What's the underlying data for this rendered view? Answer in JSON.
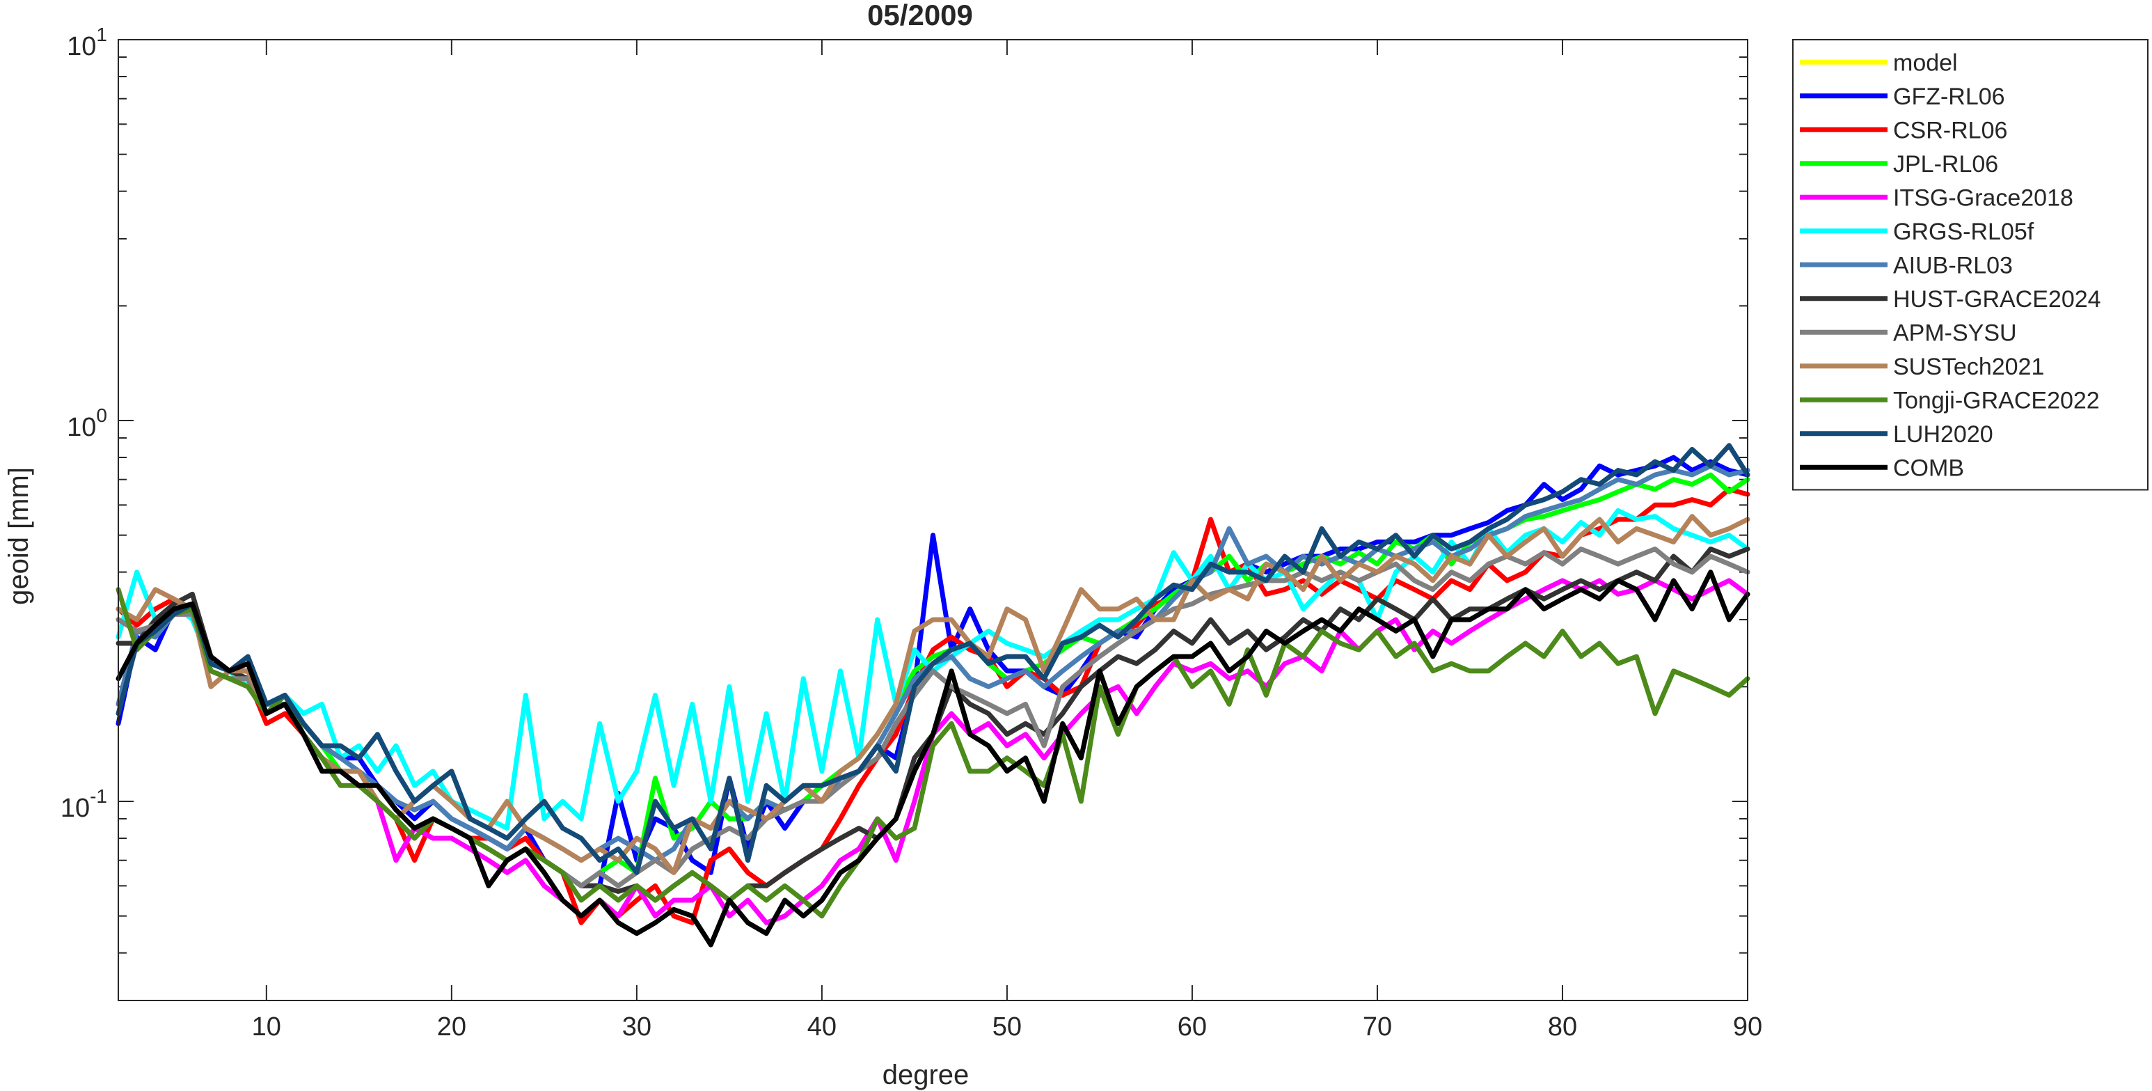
{
  "chart_data": {
    "type": "line",
    "title": "05/2009",
    "xlabel": "degree",
    "ylabel": "geoid [mm]",
    "xlim": [
      2,
      90
    ],
    "ylim": [
      0.03,
      10
    ],
    "yscale": "log",
    "xticks": [
      10,
      20,
      30,
      40,
      50,
      60,
      70,
      80,
      90
    ],
    "yticks": [
      {
        "value": 0.1,
        "base": "10",
        "exp": "-1"
      },
      {
        "value": 1,
        "base": "10",
        "exp": "0"
      },
      {
        "value": 10,
        "base": "10",
        "exp": "1"
      }
    ],
    "grid": false,
    "legend_position": "outside-right-top",
    "x_start": 2,
    "series": [
      {
        "name": "model",
        "color": "#ffff00",
        "values": []
      },
      {
        "name": "GFZ-RL06",
        "color": "#0000ff",
        "values": [
          0.16,
          0.27,
          0.25,
          0.32,
          0.33,
          0.23,
          0.22,
          0.22,
          0.18,
          0.19,
          0.16,
          0.14,
          0.13,
          0.13,
          0.11,
          0.1,
          0.09,
          0.1,
          0.09,
          0.085,
          0.08,
          0.075,
          0.085,
          0.07,
          0.065,
          0.06,
          0.06,
          0.105,
          0.07,
          0.09,
          0.085,
          0.07,
          0.065,
          0.115,
          0.075,
          0.1,
          0.085,
          0.1,
          0.11,
          0.115,
          0.12,
          0.14,
          0.13,
          0.2,
          0.5,
          0.25,
          0.32,
          0.25,
          0.22,
          0.22,
          0.2,
          0.19,
          0.22,
          0.26,
          0.28,
          0.27,
          0.32,
          0.36,
          0.38,
          0.42,
          0.4,
          0.42,
          0.4,
          0.42,
          0.44,
          0.44,
          0.46,
          0.46,
          0.48,
          0.48,
          0.48,
          0.5,
          0.5,
          0.52,
          0.54,
          0.58,
          0.6,
          0.68,
          0.62,
          0.66,
          0.76,
          0.72,
          0.74,
          0.76,
          0.8,
          0.74,
          0.78,
          0.74,
          0.72
        ]
      },
      {
        "name": "CSR-RL06",
        "color": "#ff0000",
        "values": [
          0.32,
          0.29,
          0.32,
          0.34,
          0.31,
          0.24,
          0.22,
          0.21,
          0.16,
          0.17,
          0.15,
          0.13,
          0.12,
          0.12,
          0.1,
          0.09,
          0.07,
          0.09,
          0.085,
          0.08,
          0.08,
          0.075,
          0.08,
          0.07,
          0.065,
          0.048,
          0.055,
          0.05,
          0.055,
          0.06,
          0.05,
          0.048,
          0.07,
          0.075,
          0.065,
          0.06,
          0.065,
          0.07,
          0.075,
          0.09,
          0.11,
          0.13,
          0.15,
          0.2,
          0.25,
          0.27,
          0.25,
          0.24,
          0.2,
          0.22,
          0.21,
          0.19,
          0.2,
          0.26,
          0.28,
          0.29,
          0.33,
          0.34,
          0.38,
          0.55,
          0.4,
          0.42,
          0.35,
          0.36,
          0.38,
          0.35,
          0.38,
          0.36,
          0.34,
          0.38,
          0.36,
          0.34,
          0.38,
          0.36,
          0.42,
          0.38,
          0.4,
          0.45,
          0.44,
          0.5,
          0.52,
          0.55,
          0.55,
          0.6,
          0.6,
          0.62,
          0.6,
          0.66,
          0.64
        ]
      },
      {
        "name": "JPL-RL06",
        "color": "#00ff00",
        "values": [
          0.3,
          0.28,
          0.28,
          0.31,
          0.32,
          0.22,
          0.21,
          0.2,
          0.18,
          0.19,
          0.16,
          0.14,
          0.12,
          0.12,
          0.1,
          0.09,
          0.08,
          0.09,
          0.085,
          0.08,
          0.075,
          0.07,
          0.075,
          0.07,
          0.065,
          0.06,
          0.065,
          0.07,
          0.065,
          0.115,
          0.08,
          0.085,
          0.1,
          0.09,
          0.09,
          0.1,
          0.095,
          0.1,
          0.11,
          0.12,
          0.13,
          0.15,
          0.18,
          0.22,
          0.24,
          0.25,
          0.26,
          0.23,
          0.21,
          0.22,
          0.23,
          0.25,
          0.27,
          0.26,
          0.28,
          0.3,
          0.32,
          0.35,
          0.38,
          0.4,
          0.44,
          0.38,
          0.42,
          0.4,
          0.42,
          0.44,
          0.42,
          0.45,
          0.42,
          0.48,
          0.46,
          0.5,
          0.42,
          0.48,
          0.5,
          0.52,
          0.55,
          0.56,
          0.58,
          0.6,
          0.62,
          0.65,
          0.68,
          0.66,
          0.7,
          0.68,
          0.72,
          0.65,
          0.7
        ]
      },
      {
        "name": "ITSG-Grace2018",
        "color": "#ff00ff",
        "values": [
          0.3,
          0.28,
          0.28,
          0.31,
          0.31,
          0.22,
          0.21,
          0.2,
          0.17,
          0.18,
          0.15,
          0.13,
          0.12,
          0.11,
          0.1,
          0.07,
          0.085,
          0.08,
          0.08,
          0.075,
          0.07,
          0.065,
          0.07,
          0.06,
          0.055,
          0.05,
          0.055,
          0.05,
          0.06,
          0.05,
          0.055,
          0.055,
          0.06,
          0.05,
          0.055,
          0.048,
          0.05,
          0.055,
          0.06,
          0.07,
          0.075,
          0.09,
          0.07,
          0.1,
          0.15,
          0.17,
          0.15,
          0.16,
          0.14,
          0.15,
          0.13,
          0.15,
          0.17,
          0.19,
          0.2,
          0.17,
          0.2,
          0.23,
          0.22,
          0.23,
          0.21,
          0.22,
          0.2,
          0.23,
          0.24,
          0.22,
          0.28,
          0.25,
          0.28,
          0.3,
          0.25,
          0.28,
          0.26,
          0.28,
          0.3,
          0.32,
          0.34,
          0.36,
          0.38,
          0.36,
          0.38,
          0.35,
          0.36,
          0.38,
          0.36,
          0.34,
          0.36,
          0.38,
          0.35
        ]
      },
      {
        "name": "GRGS-RL05f",
        "color": "#00ffff",
        "values": [
          0.27,
          0.4,
          0.3,
          0.33,
          0.3,
          0.23,
          0.22,
          0.2,
          0.18,
          0.19,
          0.17,
          0.18,
          0.13,
          0.14,
          0.12,
          0.14,
          0.11,
          0.12,
          0.1,
          0.095,
          0.09,
          0.085,
          0.19,
          0.09,
          0.1,
          0.09,
          0.16,
          0.1,
          0.12,
          0.19,
          0.11,
          0.18,
          0.1,
          0.2,
          0.1,
          0.17,
          0.1,
          0.21,
          0.12,
          0.22,
          0.13,
          0.3,
          0.18,
          0.25,
          0.22,
          0.24,
          0.26,
          0.28,
          0.26,
          0.25,
          0.24,
          0.26,
          0.28,
          0.3,
          0.3,
          0.32,
          0.34,
          0.45,
          0.38,
          0.44,
          0.36,
          0.42,
          0.38,
          0.4,
          0.32,
          0.36,
          0.4,
          0.38,
          0.3,
          0.4,
          0.44,
          0.4,
          0.48,
          0.42,
          0.52,
          0.45,
          0.5,
          0.52,
          0.48,
          0.54,
          0.5,
          0.58,
          0.55,
          0.56,
          0.52,
          0.5,
          0.48,
          0.5,
          0.46
        ]
      },
      {
        "name": "AIUB-RL03",
        "color": "#4a7fb5",
        "values": [
          0.18,
          0.28,
          0.27,
          0.31,
          0.32,
          0.23,
          0.22,
          0.21,
          0.18,
          0.18,
          0.16,
          0.14,
          0.13,
          0.12,
          0.11,
          0.1,
          0.095,
          0.1,
          0.09,
          0.085,
          0.08,
          0.075,
          0.085,
          0.08,
          0.075,
          0.07,
          0.075,
          0.08,
          0.075,
          0.07,
          0.075,
          0.09,
          0.085,
          0.1,
          0.09,
          0.1,
          0.095,
          0.1,
          0.1,
          0.115,
          0.12,
          0.14,
          0.17,
          0.21,
          0.23,
          0.24,
          0.21,
          0.2,
          0.21,
          0.22,
          0.2,
          0.22,
          0.24,
          0.26,
          0.28,
          0.28,
          0.3,
          0.34,
          0.38,
          0.4,
          0.52,
          0.42,
          0.44,
          0.4,
          0.44,
          0.42,
          0.44,
          0.42,
          0.46,
          0.44,
          0.46,
          0.48,
          0.44,
          0.46,
          0.5,
          0.52,
          0.56,
          0.58,
          0.6,
          0.62,
          0.66,
          0.7,
          0.68,
          0.72,
          0.74,
          0.72,
          0.76,
          0.72,
          0.74
        ]
      },
      {
        "name": "HUST-GRACE2024",
        "color": "#333333",
        "values": [
          0.26,
          0.26,
          0.3,
          0.33,
          0.35,
          0.24,
          0.22,
          0.21,
          0.17,
          0.18,
          0.15,
          0.13,
          0.12,
          0.12,
          0.1,
          0.09,
          0.08,
          0.09,
          0.085,
          0.08,
          0.075,
          0.07,
          0.075,
          0.07,
          0.065,
          0.06,
          0.06,
          0.058,
          0.06,
          0.055,
          0.06,
          0.065,
          0.06,
          0.055,
          0.06,
          0.06,
          0.065,
          0.07,
          0.075,
          0.08,
          0.085,
          0.08,
          0.09,
          0.13,
          0.15,
          0.2,
          0.18,
          0.17,
          0.15,
          0.16,
          0.15,
          0.17,
          0.2,
          0.22,
          0.24,
          0.23,
          0.25,
          0.28,
          0.26,
          0.3,
          0.26,
          0.28,
          0.25,
          0.27,
          0.3,
          0.28,
          0.32,
          0.3,
          0.34,
          0.32,
          0.3,
          0.34,
          0.3,
          0.32,
          0.32,
          0.34,
          0.36,
          0.34,
          0.36,
          0.38,
          0.36,
          0.38,
          0.4,
          0.38,
          0.44,
          0.4,
          0.46,
          0.44,
          0.46
        ]
      },
      {
        "name": "APM-SYSU",
        "color": "#808080",
        "values": [
          0.3,
          0.28,
          0.29,
          0.31,
          0.31,
          0.22,
          0.21,
          0.21,
          0.17,
          0.18,
          0.15,
          0.13,
          0.12,
          0.12,
          0.1,
          0.09,
          0.08,
          0.09,
          0.085,
          0.08,
          0.075,
          0.07,
          0.075,
          0.07,
          0.065,
          0.06,
          0.065,
          0.06,
          0.065,
          0.07,
          0.065,
          0.075,
          0.08,
          0.085,
          0.08,
          0.09,
          0.095,
          0.1,
          0.1,
          0.11,
          0.12,
          0.13,
          0.16,
          0.19,
          0.22,
          0.2,
          0.19,
          0.18,
          0.17,
          0.18,
          0.14,
          0.2,
          0.22,
          0.24,
          0.26,
          0.28,
          0.3,
          0.32,
          0.33,
          0.35,
          0.36,
          0.37,
          0.38,
          0.38,
          0.4,
          0.38,
          0.4,
          0.38,
          0.4,
          0.42,
          0.38,
          0.36,
          0.4,
          0.38,
          0.42,
          0.44,
          0.42,
          0.45,
          0.42,
          0.46,
          0.44,
          0.42,
          0.44,
          0.46,
          0.42,
          0.4,
          0.44,
          0.42,
          0.4
        ]
      },
      {
        "name": "SUSTech2021",
        "color": "#b5835a",
        "values": [
          0.32,
          0.3,
          0.36,
          0.34,
          0.32,
          0.2,
          0.22,
          0.22,
          0.17,
          0.18,
          0.15,
          0.13,
          0.12,
          0.12,
          0.1,
          0.09,
          0.1,
          0.11,
          0.1,
          0.09,
          0.085,
          0.1,
          0.085,
          0.08,
          0.075,
          0.07,
          0.075,
          0.07,
          0.08,
          0.075,
          0.065,
          0.09,
          0.085,
          0.1,
          0.095,
          0.09,
          0.1,
          0.11,
          0.1,
          0.12,
          0.13,
          0.15,
          0.18,
          0.28,
          0.3,
          0.3,
          0.26,
          0.24,
          0.32,
          0.3,
          0.22,
          0.28,
          0.36,
          0.32,
          0.32,
          0.34,
          0.3,
          0.3,
          0.38,
          0.34,
          0.36,
          0.34,
          0.42,
          0.4,
          0.36,
          0.44,
          0.38,
          0.42,
          0.4,
          0.44,
          0.42,
          0.38,
          0.44,
          0.42,
          0.5,
          0.44,
          0.48,
          0.52,
          0.44,
          0.5,
          0.55,
          0.48,
          0.52,
          0.5,
          0.48,
          0.56,
          0.5,
          0.52,
          0.55
        ]
      },
      {
        "name": "Tongji-GRACE2022",
        "color": "#4c8a1a",
        "values": [
          0.36,
          0.25,
          0.28,
          0.31,
          0.32,
          0.22,
          0.21,
          0.2,
          0.17,
          0.19,
          0.15,
          0.13,
          0.11,
          0.11,
          0.1,
          0.09,
          0.08,
          0.09,
          0.085,
          0.08,
          0.075,
          0.07,
          0.075,
          0.07,
          0.065,
          0.055,
          0.06,
          0.055,
          0.06,
          0.055,
          0.06,
          0.065,
          0.06,
          0.055,
          0.06,
          0.055,
          0.06,
          0.055,
          0.05,
          0.06,
          0.07,
          0.09,
          0.08,
          0.085,
          0.14,
          0.16,
          0.12,
          0.12,
          0.13,
          0.12,
          0.11,
          0.15,
          0.1,
          0.2,
          0.15,
          0.2,
          0.22,
          0.24,
          0.2,
          0.22,
          0.18,
          0.25,
          0.19,
          0.26,
          0.24,
          0.28,
          0.26,
          0.25,
          0.28,
          0.24,
          0.26,
          0.22,
          0.23,
          0.22,
          0.22,
          0.24,
          0.26,
          0.24,
          0.28,
          0.24,
          0.26,
          0.23,
          0.24,
          0.17,
          0.22,
          0.21,
          0.2,
          0.19,
          0.21
        ]
      },
      {
        "name": "LUH2020",
        "color": "#134a77",
        "values": [
          0.17,
          0.26,
          0.28,
          0.31,
          0.33,
          0.23,
          0.22,
          0.24,
          0.18,
          0.19,
          0.16,
          0.14,
          0.14,
          0.13,
          0.15,
          0.12,
          0.1,
          0.11,
          0.12,
          0.09,
          0.085,
          0.08,
          0.09,
          0.1,
          0.085,
          0.08,
          0.07,
          0.075,
          0.065,
          0.1,
          0.085,
          0.09,
          0.075,
          0.115,
          0.07,
          0.11,
          0.1,
          0.11,
          0.11,
          0.115,
          0.12,
          0.14,
          0.12,
          0.2,
          0.23,
          0.25,
          0.26,
          0.23,
          0.24,
          0.24,
          0.21,
          0.26,
          0.27,
          0.29,
          0.27,
          0.3,
          0.34,
          0.37,
          0.36,
          0.42,
          0.4,
          0.4,
          0.38,
          0.44,
          0.4,
          0.52,
          0.44,
          0.48,
          0.46,
          0.5,
          0.44,
          0.5,
          0.46,
          0.48,
          0.52,
          0.55,
          0.6,
          0.62,
          0.65,
          0.7,
          0.68,
          0.74,
          0.72,
          0.78,
          0.74,
          0.84,
          0.76,
          0.86,
          0.72
        ]
      },
      {
        "name": "COMB",
        "color": "#000000",
        "values": [
          0.21,
          0.26,
          0.29,
          0.32,
          0.33,
          0.24,
          0.22,
          0.23,
          0.17,
          0.18,
          0.15,
          0.12,
          0.12,
          0.11,
          0.11,
          0.095,
          0.085,
          0.09,
          0.085,
          0.08,
          0.06,
          0.07,
          0.075,
          0.065,
          0.055,
          0.05,
          0.055,
          0.048,
          0.045,
          0.048,
          0.052,
          0.05,
          0.042,
          0.055,
          0.048,
          0.045,
          0.055,
          0.05,
          0.055,
          0.065,
          0.07,
          0.08,
          0.09,
          0.12,
          0.15,
          0.22,
          0.15,
          0.14,
          0.12,
          0.13,
          0.1,
          0.16,
          0.13,
          0.22,
          0.16,
          0.2,
          0.22,
          0.24,
          0.24,
          0.26,
          0.22,
          0.24,
          0.28,
          0.26,
          0.28,
          0.3,
          0.28,
          0.32,
          0.3,
          0.28,
          0.3,
          0.24,
          0.3,
          0.3,
          0.32,
          0.32,
          0.36,
          0.32,
          0.34,
          0.36,
          0.34,
          0.38,
          0.36,
          0.3,
          0.38,
          0.32,
          0.4,
          0.3,
          0.35
        ]
      }
    ]
  }
}
